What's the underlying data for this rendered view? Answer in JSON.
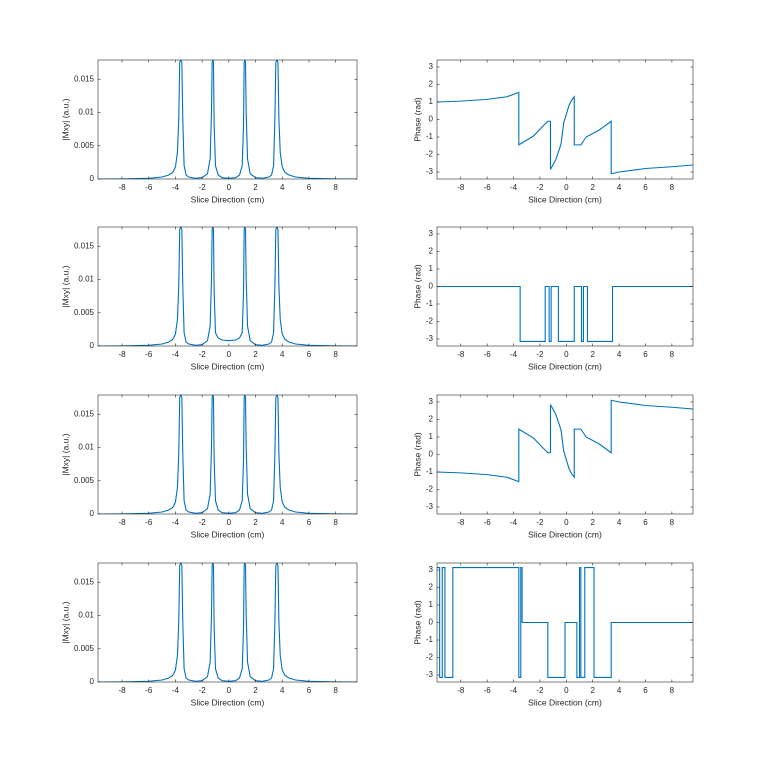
{
  "chart_data": [
    {
      "type": "line",
      "xlabel": "Slice Direction (cm)",
      "ylabel": "|Mxy| (a.u.)",
      "xlim": [
        -9.8,
        9.6
      ],
      "ylim": [
        0,
        0.0179
      ],
      "xticks": [
        -8,
        -6,
        -4,
        -2,
        0,
        2,
        4,
        6,
        8
      ],
      "yticks": [
        0,
        0.005,
        0.01,
        0.015
      ],
      "x": [
        -9.8,
        -8,
        -6,
        -5,
        -4.5,
        -4.2,
        -4,
        -3.85,
        -3.75,
        -3.68,
        -3.6,
        -3.52,
        -3.45,
        -3.35,
        -3.2,
        -3,
        -2.5,
        -2,
        -1.6,
        -1.4,
        -1.3,
        -1.25,
        -1.2,
        -1.15,
        -1.1,
        -1,
        -0.8,
        -0.5,
        0,
        0.5,
        0.8,
        1,
        1.1,
        1.15,
        1.2,
        1.25,
        1.3,
        1.4,
        1.6,
        2,
        2.5,
        3,
        3.2,
        3.35,
        3.45,
        3.52,
        3.6,
        3.68,
        3.75,
        3.85,
        4,
        4.2,
        4.5,
        5,
        6,
        8,
        9.6
      ],
      "series": [
        {
          "color": "#0072bd",
          "values": [
            0,
            2e-05,
            0.0001,
            0.0003,
            0.0006,
            0.001,
            0.0018,
            0.004,
            0.009,
            0.0175,
            0.018,
            0.0175,
            0.009,
            0.002,
            0.0006,
            0.0003,
            0.0001,
            0.0002,
            0.0008,
            0.003,
            0.01,
            0.0175,
            0.018,
            0.0175,
            0.008,
            0.002,
            0.0006,
            0.0002,
            0.0001,
            0.0002,
            0.0006,
            0.002,
            0.008,
            0.0175,
            0.018,
            0.0175,
            0.01,
            0.003,
            0.0008,
            0.0002,
            0.0001,
            0.0003,
            0.0006,
            0.002,
            0.009,
            0.0175,
            0.018,
            0.0175,
            0.009,
            0.004,
            0.0018,
            0.001,
            0.0006,
            0.0003,
            0.0001,
            2e-05,
            0
          ]
        }
      ]
    },
    {
      "type": "line",
      "xlabel": "Slice Direction (cm)",
      "ylabel": "Phase (rad)",
      "xlim": [
        -9.8,
        9.6
      ],
      "ylim": [
        -3.4,
        3.4
      ],
      "xticks": [
        -8,
        -6,
        -4,
        -2,
        0,
        2,
        4,
        6,
        8
      ],
      "yticks": [
        -3,
        -2,
        -1,
        0,
        1,
        2,
        3
      ],
      "x": [
        -9.8,
        -8,
        -6,
        -4.5,
        -3.6,
        -3.6,
        -2.5,
        -1.8,
        -1.4,
        -1.2,
        -1.2,
        -0.8,
        -0.4,
        -0.2,
        0,
        0.2,
        0.4,
        0.6,
        0.6,
        1.1,
        1.5,
        2.5,
        3.4,
        3.4,
        4,
        6,
        8,
        9.6
      ],
      "series": [
        {
          "color": "#0072bd",
          "values": [
            1,
            1.05,
            1.15,
            1.3,
            1.55,
            -1.45,
            -0.95,
            -0.4,
            -0.1,
            -0.1,
            -2.85,
            -2.3,
            -1.4,
            -0.2,
            0.3,
            0.8,
            1.1,
            1.3,
            -1.45,
            -1.45,
            -1.0,
            -0.6,
            -0.1,
            -3.1,
            -3.0,
            -2.8,
            -2.7,
            -2.6
          ]
        }
      ]
    },
    {
      "type": "line",
      "xlabel": "Slice Direction (cm)",
      "ylabel": "|Mxy| (a.u.)",
      "xlim": [
        -9.8,
        9.6
      ],
      "ylim": [
        0,
        0.0179
      ],
      "xticks": [
        -8,
        -6,
        -4,
        -2,
        0,
        2,
        4,
        6,
        8
      ],
      "yticks": [
        0,
        0.005,
        0.01,
        0.015
      ],
      "x": [
        -9.8,
        -8,
        -6,
        -5,
        -4.5,
        -4.2,
        -4,
        -3.85,
        -3.75,
        -3.68,
        -3.6,
        -3.52,
        -3.45,
        -3.35,
        -3.2,
        -3,
        -2.5,
        -2,
        -1.6,
        -1.4,
        -1.3,
        -1.25,
        -1.2,
        -1.15,
        -1.1,
        -1,
        -0.8,
        -0.5,
        0,
        0.5,
        0.8,
        1,
        1.1,
        1.15,
        1.2,
        1.25,
        1.3,
        1.4,
        1.6,
        2,
        2.5,
        3,
        3.2,
        3.35,
        3.45,
        3.52,
        3.6,
        3.68,
        3.75,
        3.85,
        4,
        4.2,
        4.5,
        5,
        6,
        8,
        9.6
      ],
      "series": [
        {
          "color": "#0072bd",
          "values": [
            0,
            2e-05,
            0.0001,
            0.0003,
            0.0006,
            0.001,
            0.0018,
            0.004,
            0.009,
            0.0175,
            0.018,
            0.0175,
            0.009,
            0.002,
            0.0006,
            0.0003,
            0.0001,
            0.0002,
            0.0008,
            0.003,
            0.01,
            0.0175,
            0.018,
            0.0175,
            0.008,
            0.002,
            0.0012,
            0.0009,
            0.0008,
            0.0009,
            0.0012,
            0.002,
            0.008,
            0.0175,
            0.018,
            0.0175,
            0.01,
            0.003,
            0.0008,
            0.0002,
            0.0001,
            0.0003,
            0.0006,
            0.002,
            0.009,
            0.0175,
            0.018,
            0.0175,
            0.009,
            0.004,
            0.0018,
            0.001,
            0.0006,
            0.0003,
            0.0001,
            2e-05,
            0
          ]
        }
      ]
    },
    {
      "type": "line",
      "xlabel": "Slice Direction (cm)",
      "ylabel": "Phase (rad)",
      "xlim": [
        -9.8,
        9.6
      ],
      "ylim": [
        -3.4,
        3.4
      ],
      "xticks": [
        -8,
        -6,
        -4,
        -2,
        0,
        2,
        4,
        6,
        8
      ],
      "yticks": [
        -3,
        -2,
        -1,
        0,
        1,
        2,
        3
      ],
      "x": [
        -9.8,
        -3.5,
        -3.5,
        -1.6,
        -1.6,
        -1.3,
        -1.3,
        -1.15,
        -1.15,
        -0.6,
        -0.6,
        0.6,
        0.6,
        1.15,
        1.15,
        1.3,
        1.3,
        1.6,
        1.6,
        3.5,
        3.5,
        9.6
      ],
      "series": [
        {
          "color": "#0072bd",
          "values": [
            0,
            0,
            -3.14,
            -3.14,
            0,
            0,
            -3.14,
            -3.14,
            0,
            0,
            -3.14,
            -3.14,
            0,
            0,
            -3.14,
            -3.14,
            0,
            0,
            -3.14,
            -3.14,
            0,
            0
          ]
        }
      ]
    },
    {
      "type": "line",
      "xlabel": "Slice Direction (cm)",
      "ylabel": "|Mxy| (a.u.)",
      "xlim": [
        -9.8,
        9.6
      ],
      "ylim": [
        0,
        0.0179
      ],
      "xticks": [
        -8,
        -6,
        -4,
        -2,
        0,
        2,
        4,
        6,
        8
      ],
      "yticks": [
        0,
        0.005,
        0.01,
        0.015
      ],
      "x": [
        -9.8,
        -8,
        -6,
        -5,
        -4.5,
        -4.2,
        -4,
        -3.85,
        -3.75,
        -3.68,
        -3.6,
        -3.52,
        -3.45,
        -3.35,
        -3.2,
        -3,
        -2.5,
        -2,
        -1.6,
        -1.4,
        -1.3,
        -1.25,
        -1.2,
        -1.15,
        -1.1,
        -1,
        -0.8,
        -0.5,
        0,
        0.5,
        0.8,
        1,
        1.1,
        1.15,
        1.2,
        1.25,
        1.3,
        1.4,
        1.6,
        2,
        2.5,
        3,
        3.2,
        3.35,
        3.45,
        3.52,
        3.6,
        3.68,
        3.75,
        3.85,
        4,
        4.2,
        4.5,
        5,
        6,
        8,
        9.6
      ],
      "series": [
        {
          "color": "#0072bd",
          "values": [
            0,
            2e-05,
            0.0001,
            0.0003,
            0.0006,
            0.001,
            0.0018,
            0.004,
            0.009,
            0.0175,
            0.018,
            0.0175,
            0.009,
            0.002,
            0.0006,
            0.0003,
            0.0001,
            0.0002,
            0.0008,
            0.003,
            0.01,
            0.0175,
            0.018,
            0.0175,
            0.008,
            0.002,
            0.0006,
            0.0002,
            0.0001,
            0.0002,
            0.0006,
            0.002,
            0.008,
            0.0175,
            0.018,
            0.0175,
            0.01,
            0.003,
            0.0008,
            0.0002,
            0.0001,
            0.0003,
            0.0006,
            0.002,
            0.009,
            0.0175,
            0.018,
            0.0175,
            0.009,
            0.004,
            0.0018,
            0.001,
            0.0006,
            0.0003,
            0.0001,
            2e-05,
            0
          ]
        }
      ]
    },
    {
      "type": "line",
      "xlabel": "Slice Direction (cm)",
      "ylabel": "Phase (rad)",
      "xlim": [
        -9.8,
        9.6
      ],
      "ylim": [
        -3.4,
        3.4
      ],
      "xticks": [
        -8,
        -6,
        -4,
        -2,
        0,
        2,
        4,
        6,
        8
      ],
      "yticks": [
        -3,
        -2,
        -1,
        0,
        1,
        2,
        3
      ],
      "x": [
        -9.8,
        -8,
        -6,
        -4.5,
        -3.6,
        -3.6,
        -2.5,
        -1.8,
        -1.4,
        -1.2,
        -1.2,
        -0.8,
        -0.4,
        -0.2,
        0,
        0.2,
        0.4,
        0.6,
        0.6,
        1.1,
        1.5,
        2.5,
        3.4,
        3.4,
        4,
        6,
        8,
        9.6
      ],
      "series": [
        {
          "color": "#0072bd",
          "values": [
            -1,
            -1.05,
            -1.15,
            -1.3,
            -1.55,
            1.45,
            0.95,
            0.4,
            0.1,
            0.1,
            2.85,
            2.3,
            1.4,
            0.2,
            -0.3,
            -0.8,
            -1.1,
            -1.3,
            1.45,
            1.45,
            1.0,
            0.6,
            0.1,
            3.1,
            3.0,
            2.8,
            2.7,
            2.6
          ]
        }
      ]
    },
    {
      "type": "line",
      "xlabel": "Slice Direction (cm)",
      "ylabel": "|Mxy| (a.u.)",
      "xlim": [
        -9.8,
        9.6
      ],
      "ylim": [
        0,
        0.0179
      ],
      "xticks": [
        -8,
        -6,
        -4,
        -2,
        0,
        2,
        4,
        6,
        8
      ],
      "yticks": [
        0,
        0.005,
        0.01,
        0.015
      ],
      "x": [
        -9.8,
        -8,
        -6,
        -5,
        -4.5,
        -4.2,
        -4,
        -3.85,
        -3.75,
        -3.68,
        -3.6,
        -3.52,
        -3.45,
        -3.35,
        -3.2,
        -3,
        -2.5,
        -2,
        -1.6,
        -1.4,
        -1.3,
        -1.25,
        -1.2,
        -1.15,
        -1.1,
        -1,
        -0.8,
        -0.5,
        0,
        0.5,
        0.8,
        1,
        1.1,
        1.15,
        1.2,
        1.25,
        1.3,
        1.4,
        1.6,
        2,
        2.5,
        3,
        3.2,
        3.35,
        3.45,
        3.52,
        3.6,
        3.68,
        3.75,
        3.85,
        4,
        4.2,
        4.5,
        5,
        6,
        8,
        9.6
      ],
      "series": [
        {
          "color": "#0072bd",
          "values": [
            0,
            2e-05,
            0.0001,
            0.0003,
            0.0006,
            0.001,
            0.0018,
            0.004,
            0.009,
            0.0175,
            0.018,
            0.0175,
            0.009,
            0.002,
            0.0006,
            0.0003,
            0.0001,
            0.0002,
            0.0008,
            0.003,
            0.01,
            0.0175,
            0.018,
            0.0175,
            0.008,
            0.002,
            0.0006,
            0.0002,
            0.0001,
            0.0002,
            0.0006,
            0.002,
            0.008,
            0.0175,
            0.018,
            0.0175,
            0.01,
            0.003,
            0.0008,
            0.0002,
            0.0001,
            0.0003,
            0.0006,
            0.002,
            0.009,
            0.0175,
            0.018,
            0.0175,
            0.009,
            0.004,
            0.0018,
            0.001,
            0.0006,
            0.0003,
            0.0001,
            2e-05,
            0
          ]
        }
      ]
    },
    {
      "type": "line",
      "xlabel": "Slice Direction (cm)",
      "ylabel": "Phase (rad)",
      "xlim": [
        -9.8,
        9.6
      ],
      "ylim": [
        -3.4,
        3.4
      ],
      "xticks": [
        -8,
        -6,
        -4,
        -2,
        0,
        2,
        4,
        6,
        8
      ],
      "yticks": [
        -3,
        -2,
        -1,
        0,
        1,
        2,
        3
      ],
      "x": [
        -9.8,
        -9.6,
        -9.6,
        -9.4,
        -9.4,
        -9.2,
        -9.2,
        -8.6,
        -8.6,
        -3.6,
        -3.6,
        -3.45,
        -3.45,
        -3.35,
        -3.35,
        -1.4,
        -1.4,
        -0.1,
        -0.1,
        0.8,
        0.8,
        1.0,
        1.0,
        1.1,
        1.1,
        1.4,
        1.4,
        2.1,
        2.1,
        3.4,
        3.4,
        9.6
      ],
      "series": [
        {
          "color": "#0072bd",
          "values": [
            3.14,
            3.14,
            -3.14,
            -3.14,
            3.14,
            3.14,
            -3.14,
            -3.14,
            3.14,
            3.14,
            -3.14,
            -3.14,
            3.14,
            3.14,
            0,
            0,
            -3.14,
            -3.14,
            0,
            0,
            -3.14,
            -3.14,
            3.14,
            3.14,
            -3.14,
            -3.14,
            3.14,
            3.14,
            -3.14,
            -3.14,
            0,
            0
          ]
        }
      ]
    }
  ]
}
